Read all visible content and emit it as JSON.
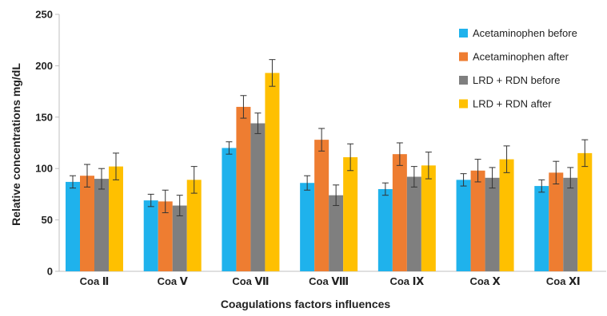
{
  "chart_data": {
    "type": "bar",
    "title": "",
    "xlabel": "Coagulations factors influences",
    "ylabel": "Relative concentrations mg/dL",
    "ylim": [
      0,
      250
    ],
    "yticks": [
      0,
      50,
      100,
      150,
      200,
      250
    ],
    "grid": false,
    "legend_position": "top-right",
    "categories": [
      "Coa Ⅱ",
      "Coa Ⅴ",
      "Coa Ⅶ",
      "Coa Ⅷ",
      "Coa Ⅸ",
      "Coa Ⅹ",
      "Coa Ⅺ"
    ],
    "series": [
      {
        "name": "Acetaminophen before",
        "color": "#1fb2ec",
        "values": [
          87,
          69,
          120,
          86,
          80,
          89,
          83
        ],
        "errors": [
          6,
          6,
          6,
          7,
          6,
          6,
          6
        ]
      },
      {
        "name": "Acetaminophen after",
        "color": "#ee7d31",
        "values": [
          93,
          68,
          160,
          128,
          114,
          98,
          96
        ],
        "errors": [
          11,
          11,
          11,
          11,
          11,
          11,
          11
        ]
      },
      {
        "name": "LRD + RDN before",
        "color": "#7f7f7f",
        "values": [
          90,
          64,
          144,
          74,
          92,
          91,
          91
        ],
        "errors": [
          10,
          10,
          10,
          10,
          10,
          10,
          10
        ]
      },
      {
        "name": "LRD + RDN after",
        "color": "#ffc000",
        "values": [
          102,
          89,
          193,
          111,
          103,
          109,
          115
        ],
        "errors": [
          13,
          13,
          13,
          13,
          13,
          13,
          13
        ]
      }
    ]
  }
}
